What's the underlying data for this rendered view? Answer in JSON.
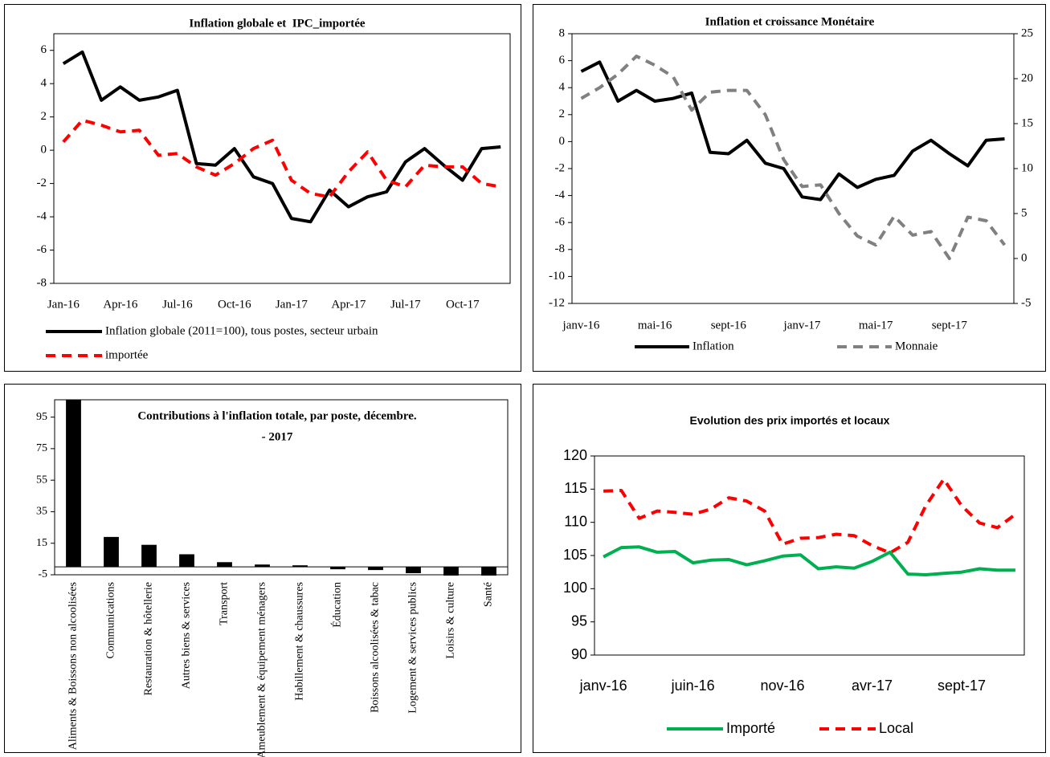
{
  "chart_data": [
    {
      "type": "line",
      "title": "Inflation globale et  IPC_importée",
      "categories": [
        "Jan-16",
        null,
        null,
        "Apr-16",
        null,
        null,
        "Jul-16",
        null,
        null,
        "Oct-16",
        null,
        null,
        "Jan-17",
        null,
        null,
        "Apr-17",
        null,
        null,
        "Jul-17",
        null,
        null,
        "Oct-17",
        null,
        null
      ],
      "series": [
        {
          "name": "Inflation globale (2011=100), tous postes, secteur urbain",
          "color": "#000000",
          "line_style": "solid",
          "values": [
            5.2,
            5.9,
            3.0,
            3.8,
            3.0,
            3.2,
            3.6,
            -0.8,
            -0.9,
            0.1,
            -1.6,
            -2.0,
            -4.1,
            -4.3,
            -2.4,
            -3.4,
            -2.8,
            -2.5,
            -0.7,
            0.1,
            -0.9,
            -1.8,
            0.1,
            0.2
          ]
        },
        {
          "name": "importée",
          "color": "#ff0000",
          "line_style": "dashed",
          "values": [
            0.5,
            1.8,
            1.5,
            1.1,
            1.2,
            -0.3,
            -0.2,
            -1.0,
            -1.5,
            -0.8,
            0.1,
            0.6,
            -1.8,
            -2.6,
            -2.8,
            -1.3,
            -0.1,
            -1.8,
            -2.2,
            -0.9,
            -1.0,
            -1.0,
            -2.0,
            -2.2
          ]
        }
      ],
      "ylim": [
        -8,
        7
      ],
      "yticks": [
        -8,
        -6,
        -4,
        -2,
        0,
        2,
        4,
        6
      ],
      "grid": false
    },
    {
      "type": "line",
      "title": "Inflation et croissance Monétaire",
      "categories": [
        "janv-16",
        null,
        null,
        null,
        "mai-16",
        null,
        null,
        null,
        "sept-16",
        null,
        null,
        null,
        "janv-17",
        null,
        null,
        null,
        "mai-17",
        null,
        null,
        null,
        "sept-17",
        null,
        null,
        null
      ],
      "series": [
        {
          "name": "Inflation",
          "color": "#000000",
          "line_style": "solid",
          "values": [
            5.2,
            5.9,
            3.0,
            3.8,
            3.0,
            3.2,
            3.6,
            -0.8,
            -0.9,
            0.1,
            -1.6,
            -2.0,
            -4.1,
            -4.3,
            -2.4,
            -3.4,
            -2.8,
            -2.5,
            -0.7,
            0.1,
            -0.9,
            -1.8,
            0.1,
            0.2
          ]
        },
        {
          "name": "Monnaie",
          "color": "#808080",
          "line_style": "dashed",
          "axis": "y2",
          "values": [
            17.8,
            19.0,
            20.5,
            22.5,
            21.5,
            20.2,
            16.5,
            18.5,
            18.7,
            18.7,
            16.0,
            11.0,
            8.0,
            8.2,
            5.0,
            2.5,
            1.5,
            4.7,
            2.6,
            3.0,
            0.0,
            4.6,
            4.2,
            1.5
          ]
        }
      ],
      "ylim": [
        -12,
        8
      ],
      "yticks": [
        -12,
        -10,
        -8,
        -6,
        -4,
        -2,
        0,
        2,
        4,
        6,
        8
      ],
      "y2lim": [
        -5,
        25
      ],
      "y2ticks": [
        -5,
        0,
        5,
        10,
        15,
        20,
        25
      ],
      "grid": false
    },
    {
      "type": "bar",
      "title": [
        "Contributions à l'inflation totale, par poste, décembre.",
        "- 2017"
      ],
      "categories": [
        "Aliments & Boissons non alcoolisées",
        "Communications",
        "Restauration & hôtellerie",
        "Autres biens & services",
        "Transport",
        "Ameublement & équipement ménagers",
        "Habillement & chaussures",
        "Éducation",
        "Boissons alcoolisées & tabac",
        "Logement & services publics",
        "Loisirs & culture",
        "Santé"
      ],
      "values": [
        106,
        19,
        14,
        8,
        3,
        1.5,
        1,
        -1.5,
        -2,
        -4,
        -5.5,
        -5.5
      ],
      "color": "#000000",
      "ylim": [
        -5,
        106
      ],
      "yticks": [
        -5,
        15,
        35,
        55,
        75,
        95
      ],
      "grid": false
    },
    {
      "type": "line",
      "title": "Evolution des prix importés et locaux",
      "categories": [
        "janv-16",
        null,
        null,
        null,
        null,
        "juin-16",
        null,
        null,
        null,
        null,
        "nov-16",
        null,
        null,
        null,
        null,
        "avr-17",
        null,
        null,
        null,
        null,
        "sept-17",
        null,
        null,
        null
      ],
      "series": [
        {
          "name": "Importé",
          "color": "#00b050",
          "line_style": "solid",
          "values": [
            104.8,
            106.2,
            106.3,
            105.5,
            105.6,
            103.9,
            104.3,
            104.4,
            103.6,
            104.2,
            104.9,
            105.1,
            103.0,
            103.3,
            103.1,
            104.1,
            105.5,
            102.2,
            102.1,
            102.3,
            102.5,
            103.0,
            102.8,
            102.8
          ]
        },
        {
          "name": "Local",
          "color": "#ff0000",
          "line_style": "dashed",
          "values": [
            114.7,
            114.8,
            110.6,
            111.7,
            111.5,
            111.2,
            112.0,
            113.7,
            113.2,
            111.7,
            106.7,
            107.6,
            107.7,
            108.2,
            108.0,
            106.5,
            105.4,
            107.0,
            112.5,
            116.5,
            112.5,
            109.9,
            109.2,
            111.2
          ]
        }
      ],
      "ylim": [
        90,
        120
      ],
      "yticks": [
        90,
        95,
        100,
        105,
        110,
        115,
        120
      ],
      "grid": false
    }
  ]
}
